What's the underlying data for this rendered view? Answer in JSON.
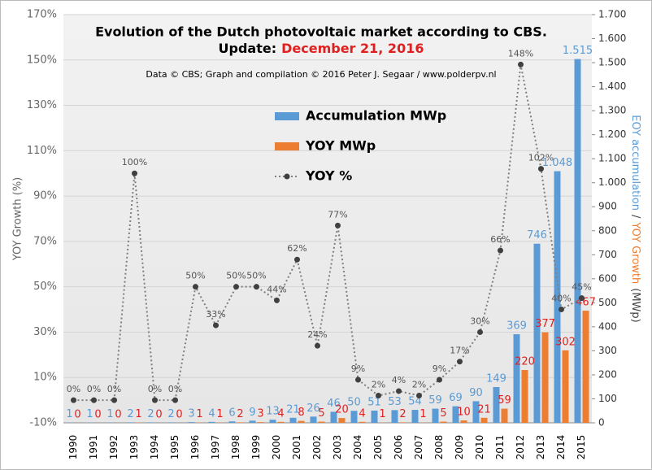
{
  "chart_data": {
    "type": "bar",
    "title": "Evolution  of the Dutch photovoltaic  market according to CBS.",
    "subtitle": "Update:",
    "subtitle_date": "December 21, 2016",
    "credit": "Data © CBS; Graph and compilation © 2016 Peter J. Segaar / www.polderpv.nl",
    "ylabel": "YOY Growth (%)",
    "y2label": [
      "EOY accumulation",
      "/",
      "YOY Growth",
      "(MWp)"
    ],
    "categories": [
      "1990",
      "1991",
      "1992",
      "1993",
      "1994",
      "1995",
      "1996",
      "1997",
      "1998",
      "1999",
      "2000",
      "2001",
      "2002",
      "2003",
      "2004",
      "2005",
      "2006",
      "2007",
      "2008",
      "2009",
      "2010",
      "2011",
      "2012",
      "2013",
      "2014",
      "2015"
    ],
    "series": [
      {
        "name": "Accumulation MWp",
        "type": "bar",
        "axis": "y2",
        "color": "#5b9bd5",
        "label_color": "#5b9bd5",
        "values": [
          1,
          1,
          1,
          2,
          2,
          2,
          3,
          4,
          6,
          9,
          13,
          21,
          26,
          46,
          50,
          51,
          53,
          54,
          59,
          69,
          90,
          149,
          369,
          746,
          1048,
          1515
        ],
        "value_labels": [
          "1",
          "1",
          "1",
          "2",
          "2",
          "2",
          "3",
          "4",
          "6",
          "9",
          "13",
          "21",
          "26",
          "46",
          "50",
          "51",
          "53",
          "54",
          "59",
          "69",
          "90",
          "149",
          "369",
          "746",
          "1.048",
          "1.515"
        ]
      },
      {
        "name": "YOY MWp",
        "type": "bar",
        "axis": "y2",
        "color": "#ed7d31",
        "label_color": "#e02020",
        "values": [
          0,
          0,
          0,
          1,
          0,
          0,
          1,
          1,
          2,
          3,
          4,
          8,
          5,
          20,
          4,
          1,
          2,
          1,
          5,
          10,
          21,
          59,
          220,
          377,
          302,
          467
        ]
      },
      {
        "name": "YOY %",
        "type": "line",
        "color": "#7f7f7f",
        "marker_color": "#404040",
        "label_color": "#555555",
        "values": [
          0,
          0,
          0,
          100,
          0,
          0,
          50,
          33,
          50,
          50,
          44,
          62,
          24,
          77,
          9,
          2,
          4,
          2,
          9,
          17,
          30,
          66,
          148,
          102,
          40,
          45
        ],
        "value_labels": [
          "0%",
          "0%",
          "0%",
          "100%",
          "0%",
          "0%",
          "50%",
          "33%",
          "50%",
          "50%",
          "44%",
          "62%",
          "24%",
          "77%",
          "9%",
          "2%",
          "4%",
          "2%",
          "9%",
          "17%",
          "30%",
          "66%",
          "148%",
          "102%",
          "40%",
          "45%"
        ]
      }
    ],
    "ylim": [
      -10,
      170
    ],
    "yticks": [
      {
        "value": -10,
        "label": "-10%"
      },
      {
        "value": 10,
        "label": "10%"
      },
      {
        "value": 30,
        "label": "30%"
      },
      {
        "value": 50,
        "label": "50%"
      },
      {
        "value": 70,
        "label": "70%"
      },
      {
        "value": 90,
        "label": "90%"
      },
      {
        "value": 110,
        "label": "110%"
      },
      {
        "value": 130,
        "label": "130%"
      },
      {
        "value": 150,
        "label": "150%"
      },
      {
        "value": 170,
        "label": "170%"
      }
    ],
    "y2lim": [
      0,
      1700
    ],
    "y2ticks": [
      0,
      100,
      200,
      300,
      400,
      500,
      600,
      700,
      800,
      900,
      {
        "value": 1000,
        "label": "1.000"
      },
      {
        "value": 1100,
        "label": "1.100"
      },
      {
        "value": 1200,
        "label": "1.200"
      },
      {
        "value": 1300,
        "label": "1.300"
      },
      {
        "value": 1400,
        "label": "1.400"
      },
      {
        "value": 1500,
        "label": "1.500"
      },
      {
        "value": 1600,
        "label": "1.600"
      },
      {
        "value": 1700,
        "label": "1.700"
      }
    ],
    "grid": true
  }
}
